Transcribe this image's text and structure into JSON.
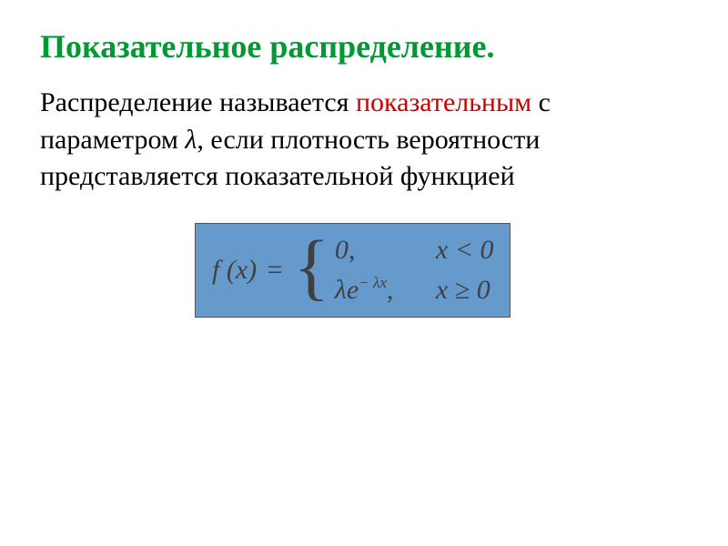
{
  "slide": {
    "title": "Показательное распределение.",
    "body": {
      "prefix": "Распределение называется ",
      "highlight": "показательным",
      "afterHighlight": " с параметром ",
      "lambda": "λ",
      "suffix": ", если плотность вероятности представляется показательной функцией"
    },
    "formula": {
      "lhs": "f (x)",
      "equals": "=",
      "case1_expr": "0,",
      "case1_cond": "x < 0",
      "case2_base": "λe",
      "case2_exp": "− λx",
      "case2_comma": ",",
      "case2_cond": "x ≥ 0"
    },
    "colors": {
      "title": "#009933",
      "highlight": "#cc0000",
      "body_text": "#000000",
      "formula_bg": "#6699cc",
      "formula_text": "#404040",
      "page_bg": "#ffffff"
    },
    "typography": {
      "title_fontsize": 36,
      "body_fontsize": 30,
      "formula_fontsize": 30,
      "font_family": "Times New Roman"
    }
  }
}
